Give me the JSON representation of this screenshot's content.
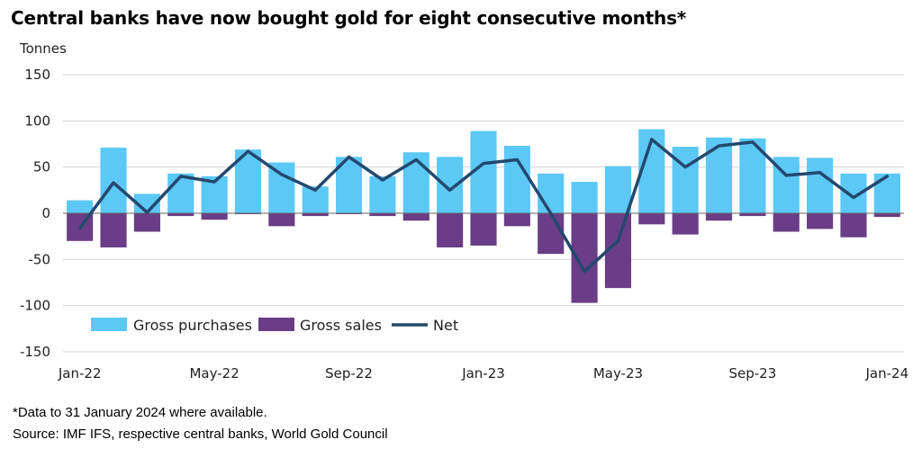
{
  "title": "Central banks have now bought gold for eight consecutive months*",
  "footnote": "*Data to 31 January 2024 where available.",
  "source": "Source: IMF IFS, respective central banks, World Gold Council",
  "colors": {
    "purchases": "#5bc8f5",
    "sales": "#6a3d87",
    "net": "#24486e",
    "grid": "#d3d3d3",
    "axis": "#666666"
  },
  "chart_data": {
    "type": "bar",
    "ylabel": "Tonnes",
    "ylim": [
      -150,
      150
    ],
    "yticks": [
      150,
      100,
      50,
      0,
      -50,
      -100,
      -150
    ],
    "grid": true,
    "legend_position": "bottom-left",
    "categories": [
      "Jan-22",
      "Feb-22",
      "Mar-22",
      "Apr-22",
      "May-22",
      "Jun-22",
      "Jul-22",
      "Aug-22",
      "Sep-22",
      "Oct-22",
      "Nov-22",
      "Dec-22",
      "Jan-23",
      "Feb-23",
      "Mar-23",
      "Apr-23",
      "May-23",
      "Jun-23",
      "Jul-23",
      "Aug-23",
      "Sep-23",
      "Oct-23",
      "Nov-23",
      "Dec-23",
      "Jan-24"
    ],
    "xtick_labels": [
      "Jan-22",
      "May-22",
      "Sep-22",
      "Jan-23",
      "May-23",
      "Sep-23",
      "Jan-24"
    ],
    "series": [
      {
        "name": "Gross purchases",
        "type": "bar",
        "values": [
          14,
          71,
          21,
          43,
          40,
          69,
          55,
          29,
          61,
          40,
          66,
          61,
          89,
          73,
          43,
          34,
          51,
          91,
          72,
          82,
          81,
          61,
          60,
          43,
          43
        ]
      },
      {
        "name": "Gross sales",
        "type": "bar",
        "values": [
          -30,
          -37,
          -20,
          -3,
          -7,
          -1,
          -14,
          -3,
          -1,
          -3,
          -8,
          -37,
          -35,
          -14,
          -44,
          -97,
          -81,
          -12,
          -23,
          -8,
          -3,
          -20,
          -17,
          -26,
          -4
        ]
      },
      {
        "name": "Net",
        "type": "line",
        "values": [
          -16,
          33,
          1,
          40,
          34,
          67,
          42,
          25,
          61,
          36,
          58,
          25,
          54,
          58,
          0,
          -63,
          -30,
          80,
          50,
          73,
          77,
          41,
          44,
          17,
          40
        ]
      }
    ]
  }
}
